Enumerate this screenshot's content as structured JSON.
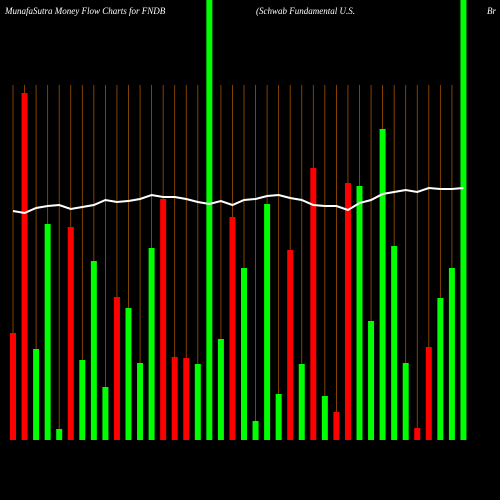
{
  "chart_data": {
    "type": "bar",
    "title": "MunafaSutra  Money Flow  Charts for FNDB",
    "subtitle": "(Schwab Fundamental U.S.",
    "title_right": "Br",
    "ylim": [
      0,
      440
    ],
    "values": [
      107,
      347,
      91,
      216,
      11,
      213,
      80,
      179,
      53,
      143,
      132,
      77,
      192,
      241,
      83,
      82,
      76,
      440,
      101,
      223,
      172,
      19,
      236,
      46,
      190,
      76,
      272,
      44,
      28,
      257,
      254,
      119,
      311,
      194,
      77,
      12,
      93,
      142,
      172,
      440
    ],
    "colors": [
      "#ff0000",
      "#ff0000",
      "#00ff00",
      "#00ff00",
      "#00ff00",
      "#ff0000",
      "#00ff00",
      "#00ff00",
      "#00ff00",
      "#ff0000",
      "#00ff00",
      "#00ff00",
      "#00ff00",
      "#ff0000",
      "#ff0000",
      "#ff0000",
      "#00ff00",
      "#00ff00",
      "#00ff00",
      "#ff0000",
      "#00ff00",
      "#00ff00",
      "#00ff00",
      "#00ff00",
      "#ff0000",
      "#00ff00",
      "#ff0000",
      "#00ff00",
      "#ff0000",
      "#ff0000",
      "#00ff00",
      "#00ff00",
      "#00ff00",
      "#00ff00",
      "#00ff00",
      "#ff0000",
      "#ff0000",
      "#00ff00",
      "#00ff00",
      "#00ff00"
    ],
    "line": {
      "color": "#ffffff",
      "values": [
        229,
        227,
        232,
        234,
        235,
        231,
        233,
        235,
        240,
        238,
        239,
        241,
        245,
        243,
        243,
        241,
        238,
        236,
        239,
        235,
        240,
        241,
        244,
        245,
        242,
        240,
        235,
        234,
        234,
        230,
        237,
        240,
        246,
        248,
        250,
        248,
        252,
        251,
        251,
        252
      ]
    }
  }
}
